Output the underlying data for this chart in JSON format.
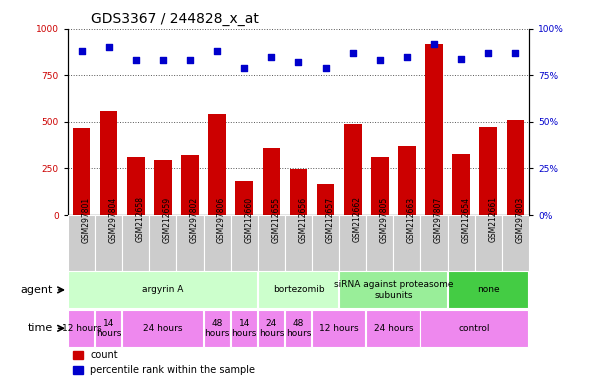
{
  "title": "GDS3367 / 244828_x_at",
  "samples": [
    "GSM297801",
    "GSM297804",
    "GSM212658",
    "GSM212659",
    "GSM297802",
    "GSM297806",
    "GSM212660",
    "GSM212655",
    "GSM212656",
    "GSM212657",
    "GSM212662",
    "GSM297805",
    "GSM212663",
    "GSM297807",
    "GSM212654",
    "GSM212661",
    "GSM297803"
  ],
  "counts": [
    470,
    560,
    310,
    295,
    320,
    540,
    185,
    360,
    245,
    165,
    490,
    310,
    370,
    920,
    330,
    475,
    510
  ],
  "percentiles": [
    88,
    90,
    83,
    83,
    83,
    88,
    79,
    85,
    82,
    79,
    87,
    83,
    85,
    92,
    84,
    87,
    87
  ],
  "bar_color": "#cc0000",
  "dot_color": "#0000cc",
  "ylim_left": [
    0,
    1000
  ],
  "ylim_right": [
    0,
    100
  ],
  "yticks_left": [
    0,
    250,
    500,
    750,
    1000
  ],
  "yticks_right": [
    0,
    25,
    50,
    75,
    100
  ],
  "ytick_labels_right": [
    "0%",
    "25%",
    "50%",
    "75%",
    "100%"
  ],
  "agent_groups": [
    {
      "label": "argyrin A",
      "start": 0,
      "end": 7,
      "color": "#ccffcc"
    },
    {
      "label": "bortezomib",
      "start": 7,
      "end": 10,
      "color": "#ccffcc"
    },
    {
      "label": "siRNA against proteasome\nsubunits",
      "start": 10,
      "end": 14,
      "color": "#99ee99"
    },
    {
      "label": "none",
      "start": 14,
      "end": 17,
      "color": "#44cc44"
    }
  ],
  "time_groups": [
    {
      "label": "12 hours",
      "start": 0,
      "end": 1
    },
    {
      "label": "14\nhours",
      "start": 1,
      "end": 2
    },
    {
      "label": "24 hours",
      "start": 2,
      "end": 5
    },
    {
      "label": "48\nhours",
      "start": 5,
      "end": 6
    },
    {
      "label": "14\nhours",
      "start": 6,
      "end": 7
    },
    {
      "label": "24\nhours",
      "start": 7,
      "end": 8
    },
    {
      "label": "48\nhours",
      "start": 8,
      "end": 9
    },
    {
      "label": "12 hours",
      "start": 9,
      "end": 11
    },
    {
      "label": "24 hours",
      "start": 11,
      "end": 13
    },
    {
      "label": "control",
      "start": 13,
      "end": 17
    }
  ],
  "time_color": "#ee88ee",
  "agent_label": "agent",
  "time_label": "time",
  "legend": [
    "count",
    "percentile rank within the sample"
  ],
  "background_color": "#ffffff",
  "grid_color": "#555555",
  "sample_box_color": "#cccccc",
  "title_fontsize": 10,
  "tick_fontsize": 6.5,
  "row_label_fontsize": 8
}
